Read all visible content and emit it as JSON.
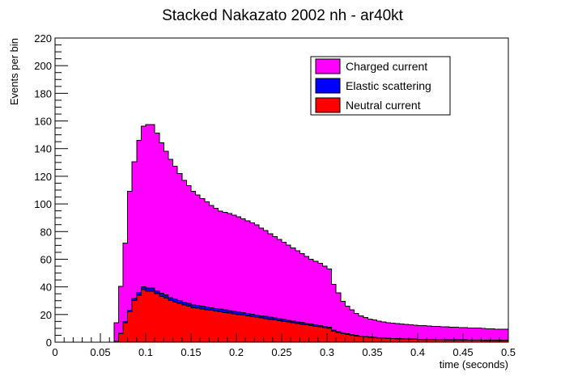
{
  "chart_data": {
    "type": "area",
    "stacked": true,
    "histogram": true,
    "title": "Stacked Nakazato 2002 nh - ar40kt",
    "xlabel": "time (seconds)",
    "ylabel": "Events per bin",
    "xlim": [
      0,
      0.5
    ],
    "ylim": [
      0,
      220
    ],
    "grid": false,
    "legend_position": "top-right",
    "x_ticks": [
      0,
      0.05,
      0.1,
      0.15,
      0.2,
      0.25,
      0.3,
      0.35,
      0.4,
      0.45,
      0.5
    ],
    "x_tick_labels": [
      "0",
      "0.05",
      "0.1",
      "0.15",
      "0.2",
      "0.25",
      "0.3",
      "0.35",
      "0.4",
      "0.45",
      "0.5"
    ],
    "y_ticks": [
      0,
      20,
      40,
      60,
      80,
      100,
      120,
      140,
      160,
      180,
      200,
      220
    ],
    "y_tick_labels": [
      "0",
      "20",
      "40",
      "60",
      "80",
      "100",
      "120",
      "140",
      "160",
      "180",
      "200",
      "220"
    ],
    "bin_edges": [
      0,
      0.005,
      0.01,
      0.015,
      0.02,
      0.025,
      0.03,
      0.035,
      0.04,
      0.045,
      0.05,
      0.055,
      0.06,
      0.065,
      0.07,
      0.075,
      0.08,
      0.085,
      0.09,
      0.095,
      0.1,
      0.105,
      0.11,
      0.115,
      0.12,
      0.125,
      0.13,
      0.135,
      0.14,
      0.145,
      0.15,
      0.155,
      0.16,
      0.165,
      0.17,
      0.175,
      0.18,
      0.185,
      0.19,
      0.195,
      0.2,
      0.205,
      0.21,
      0.215,
      0.22,
      0.225,
      0.23,
      0.235,
      0.24,
      0.245,
      0.25,
      0.255,
      0.26,
      0.265,
      0.27,
      0.275,
      0.28,
      0.285,
      0.29,
      0.295,
      0.3,
      0.305,
      0.31,
      0.315,
      0.32,
      0.325,
      0.33,
      0.335,
      0.34,
      0.345,
      0.35,
      0.355,
      0.36,
      0.365,
      0.37,
      0.375,
      0.38,
      0.385,
      0.39,
      0.395,
      0.4,
      0.405,
      0.41,
      0.415,
      0.42,
      0.425,
      0.43,
      0.435,
      0.44,
      0.445,
      0.45,
      0.455,
      0.46,
      0.465,
      0.47,
      0.475,
      0.48,
      0.485,
      0.49,
      0.495,
      0.5
    ],
    "series": [
      {
        "name": "Neutral current",
        "color": "#ff0000",
        "values": [
          0,
          0,
          0,
          0,
          0,
          0,
          0,
          0,
          0,
          0,
          0,
          0,
          0,
          0.5,
          6,
          14,
          22,
          30,
          34,
          38,
          37,
          37,
          35,
          33,
          32,
          30,
          29,
          28,
          27,
          26,
          25,
          24.5,
          24,
          23.5,
          23,
          22.5,
          22,
          21.5,
          21,
          20.5,
          20,
          19.5,
          19,
          18.5,
          18,
          17.5,
          17,
          16.5,
          16,
          15.5,
          15,
          14.5,
          14,
          13.5,
          13,
          12.5,
          12,
          11.5,
          11,
          10.5,
          10,
          8,
          7,
          6,
          5.5,
          5,
          4.5,
          4,
          3.8,
          3.5,
          3.2,
          3,
          2.8,
          2.6,
          2.5,
          2.4,
          2.3,
          2.2,
          2.1,
          2,
          1.9,
          1.9,
          1.8,
          1.8,
          1.7,
          1.7,
          1.6,
          1.6,
          1.5,
          1.5,
          1.5,
          1.4,
          1.4,
          1.4,
          1.3,
          1.3,
          1.3,
          1.2,
          1.2,
          1.2
        ]
      },
      {
        "name": "Elastic scattering",
        "color": "#0000ff",
        "values": [
          0,
          0,
          0,
          0,
          0,
          0,
          0,
          0,
          0,
          0,
          0,
          0,
          0,
          0,
          0.3,
          0.8,
          1.2,
          1.6,
          2,
          2.2,
          2.3,
          2.3,
          2.3,
          2.3,
          2.2,
          2.2,
          2.2,
          2.1,
          2.1,
          2.1,
          2,
          2,
          2,
          2,
          2,
          1.9,
          1.9,
          1.9,
          1.9,
          1.8,
          1.8,
          1.8,
          1.7,
          1.7,
          1.7,
          1.6,
          1.6,
          1.5,
          1.5,
          1.4,
          1.4,
          1.3,
          1.3,
          1.2,
          1.2,
          1.1,
          1.1,
          1,
          1,
          1,
          0.9,
          0.8,
          0.7,
          0.6,
          0.5,
          0.5,
          0.4,
          0.4,
          0.4,
          0.3,
          0.3,
          0.3,
          0.3,
          0.3,
          0.2,
          0.2,
          0.2,
          0.2,
          0.2,
          0.2,
          0.2,
          0.2,
          0.2,
          0.2,
          0.2,
          0.2,
          0.2,
          0.2,
          0.2,
          0.2,
          0.2,
          0.2,
          0.2,
          0.2,
          0.2,
          0.2,
          0.2,
          0.2,
          0.2,
          0.2
        ]
      },
      {
        "name": "Charged current",
        "color": "#ff00ff",
        "values": [
          0,
          0,
          0,
          0,
          0,
          0,
          0,
          0,
          0,
          0,
          0,
          0,
          0,
          13.5,
          34,
          57,
          86,
          99,
          110,
          116,
          118,
          118,
          114,
          109,
          104,
          100,
          96,
          92,
          88,
          85,
          82,
          80,
          78,
          76,
          74,
          72.5,
          71,
          70.5,
          70,
          69.5,
          69,
          68,
          67,
          66,
          65,
          63.5,
          62,
          60.5,
          59,
          57.5,
          56,
          54.5,
          53,
          51.5,
          50,
          48.5,
          47,
          46,
          45,
          43.5,
          42,
          33,
          28,
          23,
          20,
          18,
          16,
          14.5,
          13.5,
          13,
          12.5,
          12,
          11.5,
          11.2,
          11,
          10.8,
          10.6,
          10.4,
          10.2,
          10,
          9.9,
          9.8,
          9.6,
          9.5,
          9.4,
          9.3,
          9.2,
          9.1,
          9,
          8.9,
          8.8,
          8.7,
          8.6,
          8.5,
          8.4,
          8.3,
          8.2,
          8.1,
          8,
          8
        ]
      }
    ],
    "legend": [
      {
        "name": "Charged current",
        "color": "#ff00ff"
      },
      {
        "name": "Elastic scattering",
        "color": "#0000ff"
      },
      {
        "name": "Neutral current",
        "color": "#ff0000"
      }
    ]
  }
}
